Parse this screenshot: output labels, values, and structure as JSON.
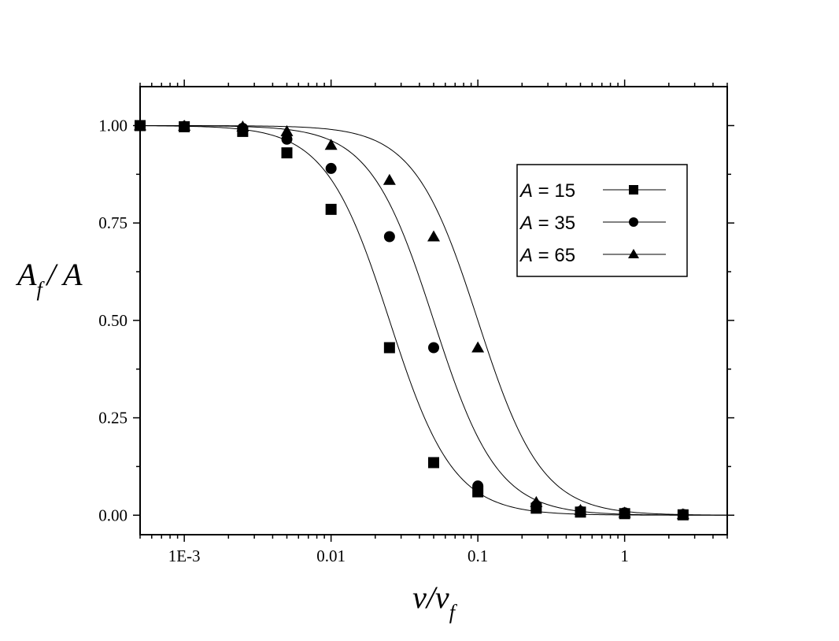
{
  "chart_data": {
    "type": "scatter",
    "title": "",
    "x_scale": "log",
    "xlim": [
      0.0005,
      5
    ],
    "ylim": [
      -0.05,
      1.1
    ],
    "x_ticks": [
      {
        "value": 0.001,
        "label": "1E-3"
      },
      {
        "value": 0.01,
        "label": "0.01"
      },
      {
        "value": 0.1,
        "label": "0.1"
      },
      {
        "value": 1,
        "label": "1"
      }
    ],
    "y_ticks": [
      {
        "value": 0,
        "label": "0.00"
      },
      {
        "value": 0.25,
        "label": "0.25"
      },
      {
        "value": 0.5,
        "label": "0.50"
      },
      {
        "value": 0.75,
        "label": "0.75"
      },
      {
        "value": 1,
        "label": "1.00"
      }
    ],
    "xlabel": {
      "base": "v/v",
      "sub": "f"
    },
    "ylabel": {
      "base": "A",
      "sub": "f",
      "rest": "/ A"
    },
    "grid": false,
    "legend_position": "top-right",
    "series": [
      {
        "name": "15",
        "legend_var": "A",
        "marker": "square",
        "fit_x0": 0.025,
        "x": [
          0.0005,
          0.001,
          0.0025,
          0.005,
          0.01,
          0.025,
          0.05,
          0.1,
          0.25,
          0.5,
          1,
          2.5
        ],
        "y": [
          1.0,
          0.997,
          0.985,
          0.93,
          0.785,
          0.43,
          0.135,
          0.06,
          0.018,
          0.008,
          0.004,
          0.001
        ]
      },
      {
        "name": "35",
        "legend_var": "A",
        "marker": "circle",
        "fit_x0": 0.05,
        "x": [
          0.0005,
          0.001,
          0.0025,
          0.005,
          0.01,
          0.025,
          0.05,
          0.1,
          0.25,
          0.5,
          1,
          2.5
        ],
        "y": [
          1.0,
          0.998,
          0.993,
          0.965,
          0.89,
          0.715,
          0.43,
          0.075,
          0.025,
          0.01,
          0.006,
          0.002
        ]
      },
      {
        "name": "65",
        "legend_var": "A",
        "marker": "triangle",
        "fit_x0": 0.1,
        "x": [
          0.0005,
          0.001,
          0.0025,
          0.005,
          0.01,
          0.025,
          0.05,
          0.1,
          0.25,
          0.5,
          1,
          2.5
        ],
        "y": [
          1.0,
          0.999,
          0.997,
          0.985,
          0.95,
          0.86,
          0.715,
          0.43,
          0.033,
          0.013,
          0.006,
          0.002
        ]
      }
    ]
  }
}
